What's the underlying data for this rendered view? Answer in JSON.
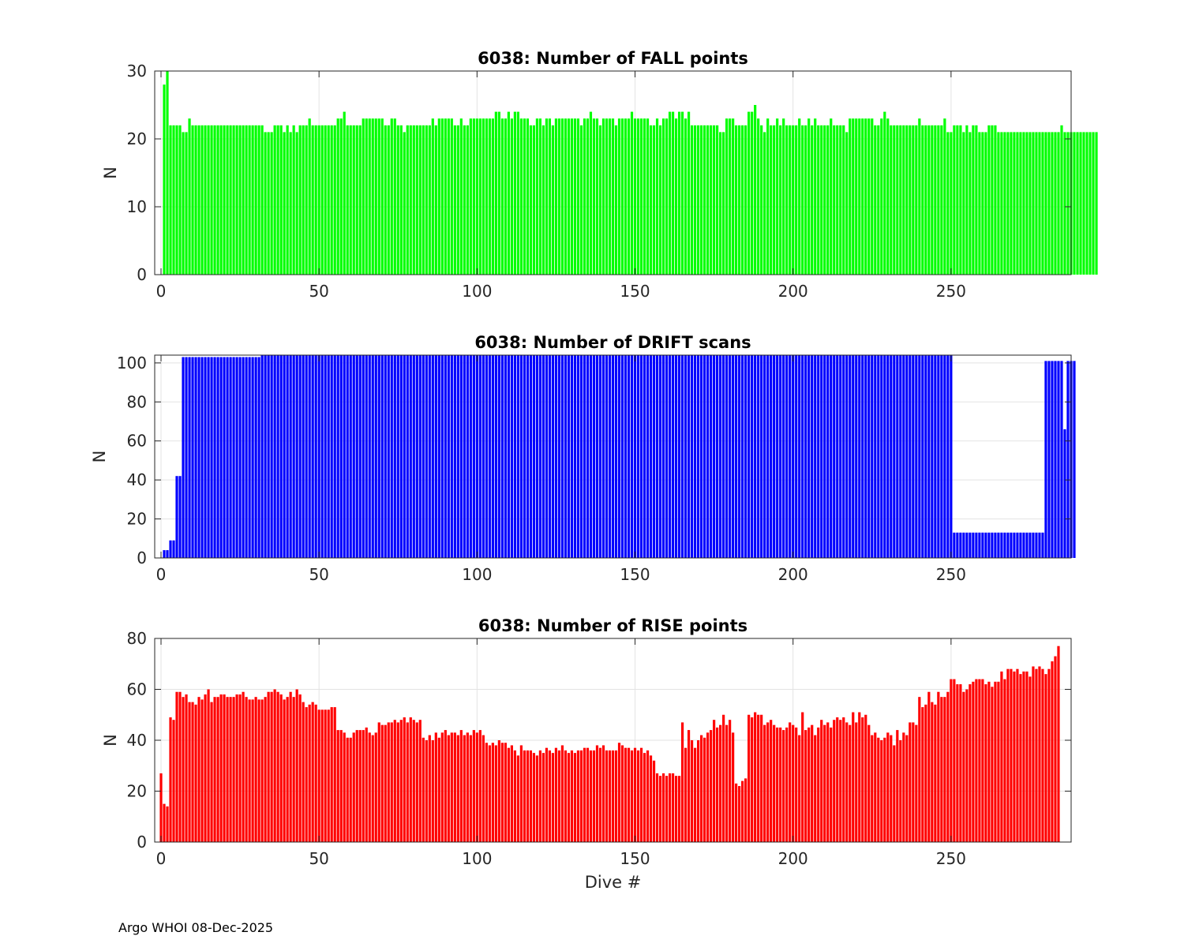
{
  "figure": {
    "footer": "Argo WHOI 08-Dec-2025",
    "xlabel": "Dive #",
    "xlim": [
      -2,
      288
    ],
    "xticks": [
      0,
      50,
      100,
      150,
      200,
      250
    ]
  },
  "chart_data": [
    {
      "type": "bar",
      "title": "6038: Number of FALL points",
      "ylabel": "N",
      "xlabel": "",
      "color": "#00ff00",
      "ylim": [
        0,
        30
      ],
      "yticks": [
        0,
        10,
        20,
        30
      ],
      "grid": true,
      "x_start": 0,
      "values": [
        0,
        28,
        30,
        22,
        22,
        22,
        22,
        21,
        21,
        23,
        22,
        22,
        22,
        22,
        22,
        22,
        22,
        22,
        22,
        22,
        22,
        22,
        22,
        22,
        22,
        22,
        22,
        22,
        22,
        22,
        22,
        22,
        22,
        21,
        21,
        21,
        22,
        22,
        22,
        21,
        22,
        21,
        22,
        21,
        22,
        22,
        22,
        23,
        22,
        22,
        22,
        22,
        22,
        22,
        22,
        22,
        23,
        23,
        24,
        22,
        22,
        22,
        22,
        22,
        23,
        23,
        23,
        23,
        23,
        23,
        23,
        22,
        22,
        23,
        23,
        22,
        22,
        21,
        22,
        22,
        22,
        22,
        22,
        22,
        22,
        22,
        23,
        22,
        23,
        23,
        23,
        23,
        23,
        22,
        22,
        23,
        22,
        22,
        23,
        23,
        23,
        23,
        23,
        23,
        23,
        23,
        24,
        24,
        23,
        23,
        24,
        23,
        24,
        24,
        23,
        23,
        23,
        22,
        22,
        23,
        23,
        22,
        23,
        23,
        22,
        23,
        23,
        23,
        23,
        23,
        23,
        23,
        23,
        22,
        23,
        23,
        24,
        23,
        23,
        22,
        23,
        23,
        23,
        23,
        22,
        23,
        23,
        23,
        23,
        24,
        23,
        23,
        23,
        23,
        23,
        22,
        22,
        23,
        22,
        23,
        23,
        24,
        24,
        23,
        24,
        24,
        23,
        24,
        22,
        22,
        22,
        22,
        22,
        22,
        22,
        22,
        22,
        21,
        21,
        23,
        23,
        23,
        22,
        22,
        22,
        22,
        24,
        24,
        25,
        23,
        22,
        21,
        23,
        22,
        22,
        23,
        22,
        23,
        22,
        22,
        22,
        22,
        23,
        22,
        22,
        23,
        22,
        23,
        22,
        22,
        22,
        22,
        23,
        22,
        22,
        22,
        22,
        21,
        23,
        23,
        23,
        23,
        23,
        23,
        23,
        23,
        22,
        22,
        23,
        24,
        23,
        22,
        22,
        22,
        22,
        22,
        22,
        22,
        22,
        22,
        23,
        22,
        22,
        22,
        22,
        22,
        22,
        22,
        23,
        21,
        21,
        22,
        22,
        22,
        21,
        22,
        21,
        22,
        22,
        21,
        21,
        21,
        22,
        22,
        22,
        21,
        21,
        21,
        21,
        21,
        21,
        21,
        21,
        21,
        21,
        21,
        21,
        21,
        21,
        21,
        21,
        21,
        21,
        21,
        21,
        22,
        21,
        21,
        21,
        21,
        21,
        21,
        21,
        21,
        21,
        21,
        21
      ]
    },
    {
      "type": "bar",
      "title": "6038: Number of DRIFT scans",
      "ylabel": "N",
      "xlabel": "",
      "color": "#0000ff",
      "ylim": [
        0,
        104
      ],
      "yticks": [
        0,
        20,
        40,
        60,
        80,
        100
      ],
      "grid": true,
      "x_start": 0,
      "values": [
        0,
        4,
        4,
        9,
        9,
        42,
        42,
        103,
        103,
        103,
        103,
        103,
        103,
        103,
        103,
        103,
        103,
        103,
        103,
        103,
        103,
        103,
        103,
        103,
        103,
        103,
        103,
        103,
        103,
        103,
        103,
        103,
        104,
        104,
        104,
        104,
        104,
        104,
        104,
        104,
        104,
        104,
        104,
        104,
        104,
        104,
        104,
        104,
        104,
        104,
        104,
        104,
        104,
        104,
        104,
        104,
        104,
        104,
        104,
        104,
        104,
        104,
        104,
        104,
        104,
        104,
        104,
        104,
        104,
        104,
        104,
        104,
        104,
        104,
        104,
        104,
        104,
        104,
        104,
        104,
        104,
        104,
        104,
        104,
        104,
        104,
        104,
        104,
        104,
        104,
        104,
        104,
        104,
        104,
        104,
        104,
        104,
        104,
        104,
        104,
        104,
        104,
        104,
        104,
        104,
        104,
        104,
        104,
        104,
        104,
        104,
        104,
        104,
        104,
        104,
        104,
        104,
        104,
        104,
        104,
        104,
        104,
        104,
        104,
        104,
        104,
        104,
        104,
        104,
        104,
        104,
        104,
        104,
        104,
        104,
        104,
        104,
        104,
        104,
        104,
        104,
        104,
        104,
        104,
        104,
        104,
        104,
        104,
        104,
        104,
        104,
        104,
        104,
        104,
        104,
        104,
        104,
        104,
        104,
        104,
        104,
        104,
        104,
        104,
        104,
        104,
        104,
        104,
        104,
        104,
        104,
        104,
        104,
        104,
        104,
        104,
        104,
        104,
        104,
        104,
        104,
        104,
        104,
        104,
        104,
        104,
        104,
        104,
        104,
        104,
        104,
        104,
        104,
        104,
        104,
        104,
        104,
        104,
        104,
        104,
        104,
        104,
        104,
        104,
        104,
        104,
        104,
        104,
        104,
        104,
        104,
        104,
        104,
        104,
        104,
        104,
        104,
        104,
        104,
        104,
        104,
        104,
        104,
        104,
        104,
        104,
        104,
        104,
        104,
        104,
        104,
        104,
        104,
        104,
        104,
        104,
        104,
        104,
        104,
        104,
        104,
        104,
        104,
        104,
        104,
        104,
        104,
        104,
        104,
        104,
        104,
        13,
        13,
        13,
        13,
        13,
        13,
        13,
        13,
        13,
        13,
        13,
        13,
        13,
        13,
        13,
        13,
        13,
        13,
        13,
        13,
        13,
        13,
        13,
        13,
        13,
        13,
        13,
        13,
        13,
        101,
        101,
        101,
        101,
        101,
        101,
        66,
        101,
        101,
        101
      ]
    },
    {
      "type": "bar",
      "title": "6038: Number of RISE points",
      "ylabel": "N",
      "xlabel": "Dive #",
      "color": "#ff0000",
      "ylim": [
        0,
        80
      ],
      "yticks": [
        0,
        20,
        40,
        60,
        80
      ],
      "grid": true,
      "x_start": 0,
      "values": [
        27,
        15,
        14,
        49,
        48,
        59,
        59,
        57,
        58,
        55,
        55,
        54,
        57,
        56,
        58,
        60,
        55,
        57,
        57,
        58,
        58,
        57,
        57,
        57,
        58,
        58,
        59,
        57,
        56,
        56,
        57,
        56,
        56,
        57,
        59,
        59,
        60,
        59,
        58,
        56,
        57,
        59,
        57,
        60,
        58,
        55,
        53,
        54,
        55,
        54,
        52,
        52,
        52,
        52,
        53,
        53,
        44,
        44,
        43,
        41,
        41,
        43,
        44,
        44,
        44,
        45,
        43,
        42,
        43,
        47,
        46,
        46,
        47,
        47,
        48,
        47,
        48,
        49,
        47,
        49,
        48,
        47,
        48,
        41,
        40,
        42,
        40,
        43,
        41,
        43,
        44,
        42,
        43,
        43,
        42,
        44,
        42,
        43,
        42,
        44,
        43,
        44,
        42,
        39,
        38,
        39,
        38,
        40,
        39,
        39,
        37,
        38,
        36,
        34,
        38,
        36,
        36,
        36,
        35,
        34,
        36,
        35,
        37,
        36,
        35,
        37,
        36,
        38,
        36,
        35,
        36,
        35,
        36,
        36,
        37,
        37,
        36,
        36,
        38,
        37,
        38,
        36,
        36,
        36,
        36,
        39,
        38,
        37,
        37,
        36,
        37,
        36,
        37,
        35,
        36,
        34,
        32,
        27,
        26,
        27,
        26,
        27,
        27,
        26,
        26,
        47,
        37,
        44,
        40,
        37,
        40,
        42,
        41,
        43,
        44,
        48,
        45,
        46,
        50,
        46,
        48,
        43,
        23,
        22,
        24,
        25,
        50,
        49,
        51,
        50,
        50,
        46,
        47,
        48,
        46,
        45,
        45,
        44,
        45,
        47,
        46,
        45,
        42,
        51,
        44,
        45,
        46,
        42,
        45,
        48,
        46,
        47,
        45,
        48,
        49,
        48,
        49,
        47,
        46,
        51,
        47,
        51,
        49,
        50,
        46,
        42,
        43,
        41,
        40,
        41,
        43,
        42,
        38,
        44,
        40,
        43,
        42,
        47,
        47,
        46,
        57,
        53,
        54,
        59,
        55,
        54,
        59,
        57,
        57,
        59,
        64,
        64,
        62,
        62,
        59,
        60,
        62,
        63,
        64,
        64,
        64,
        62,
        63,
        61,
        63,
        63,
        67,
        64,
        68,
        68,
        67,
        68,
        66,
        67,
        67,
        65,
        69,
        68,
        69,
        68,
        66,
        68,
        71,
        73,
        77
      ]
    }
  ]
}
